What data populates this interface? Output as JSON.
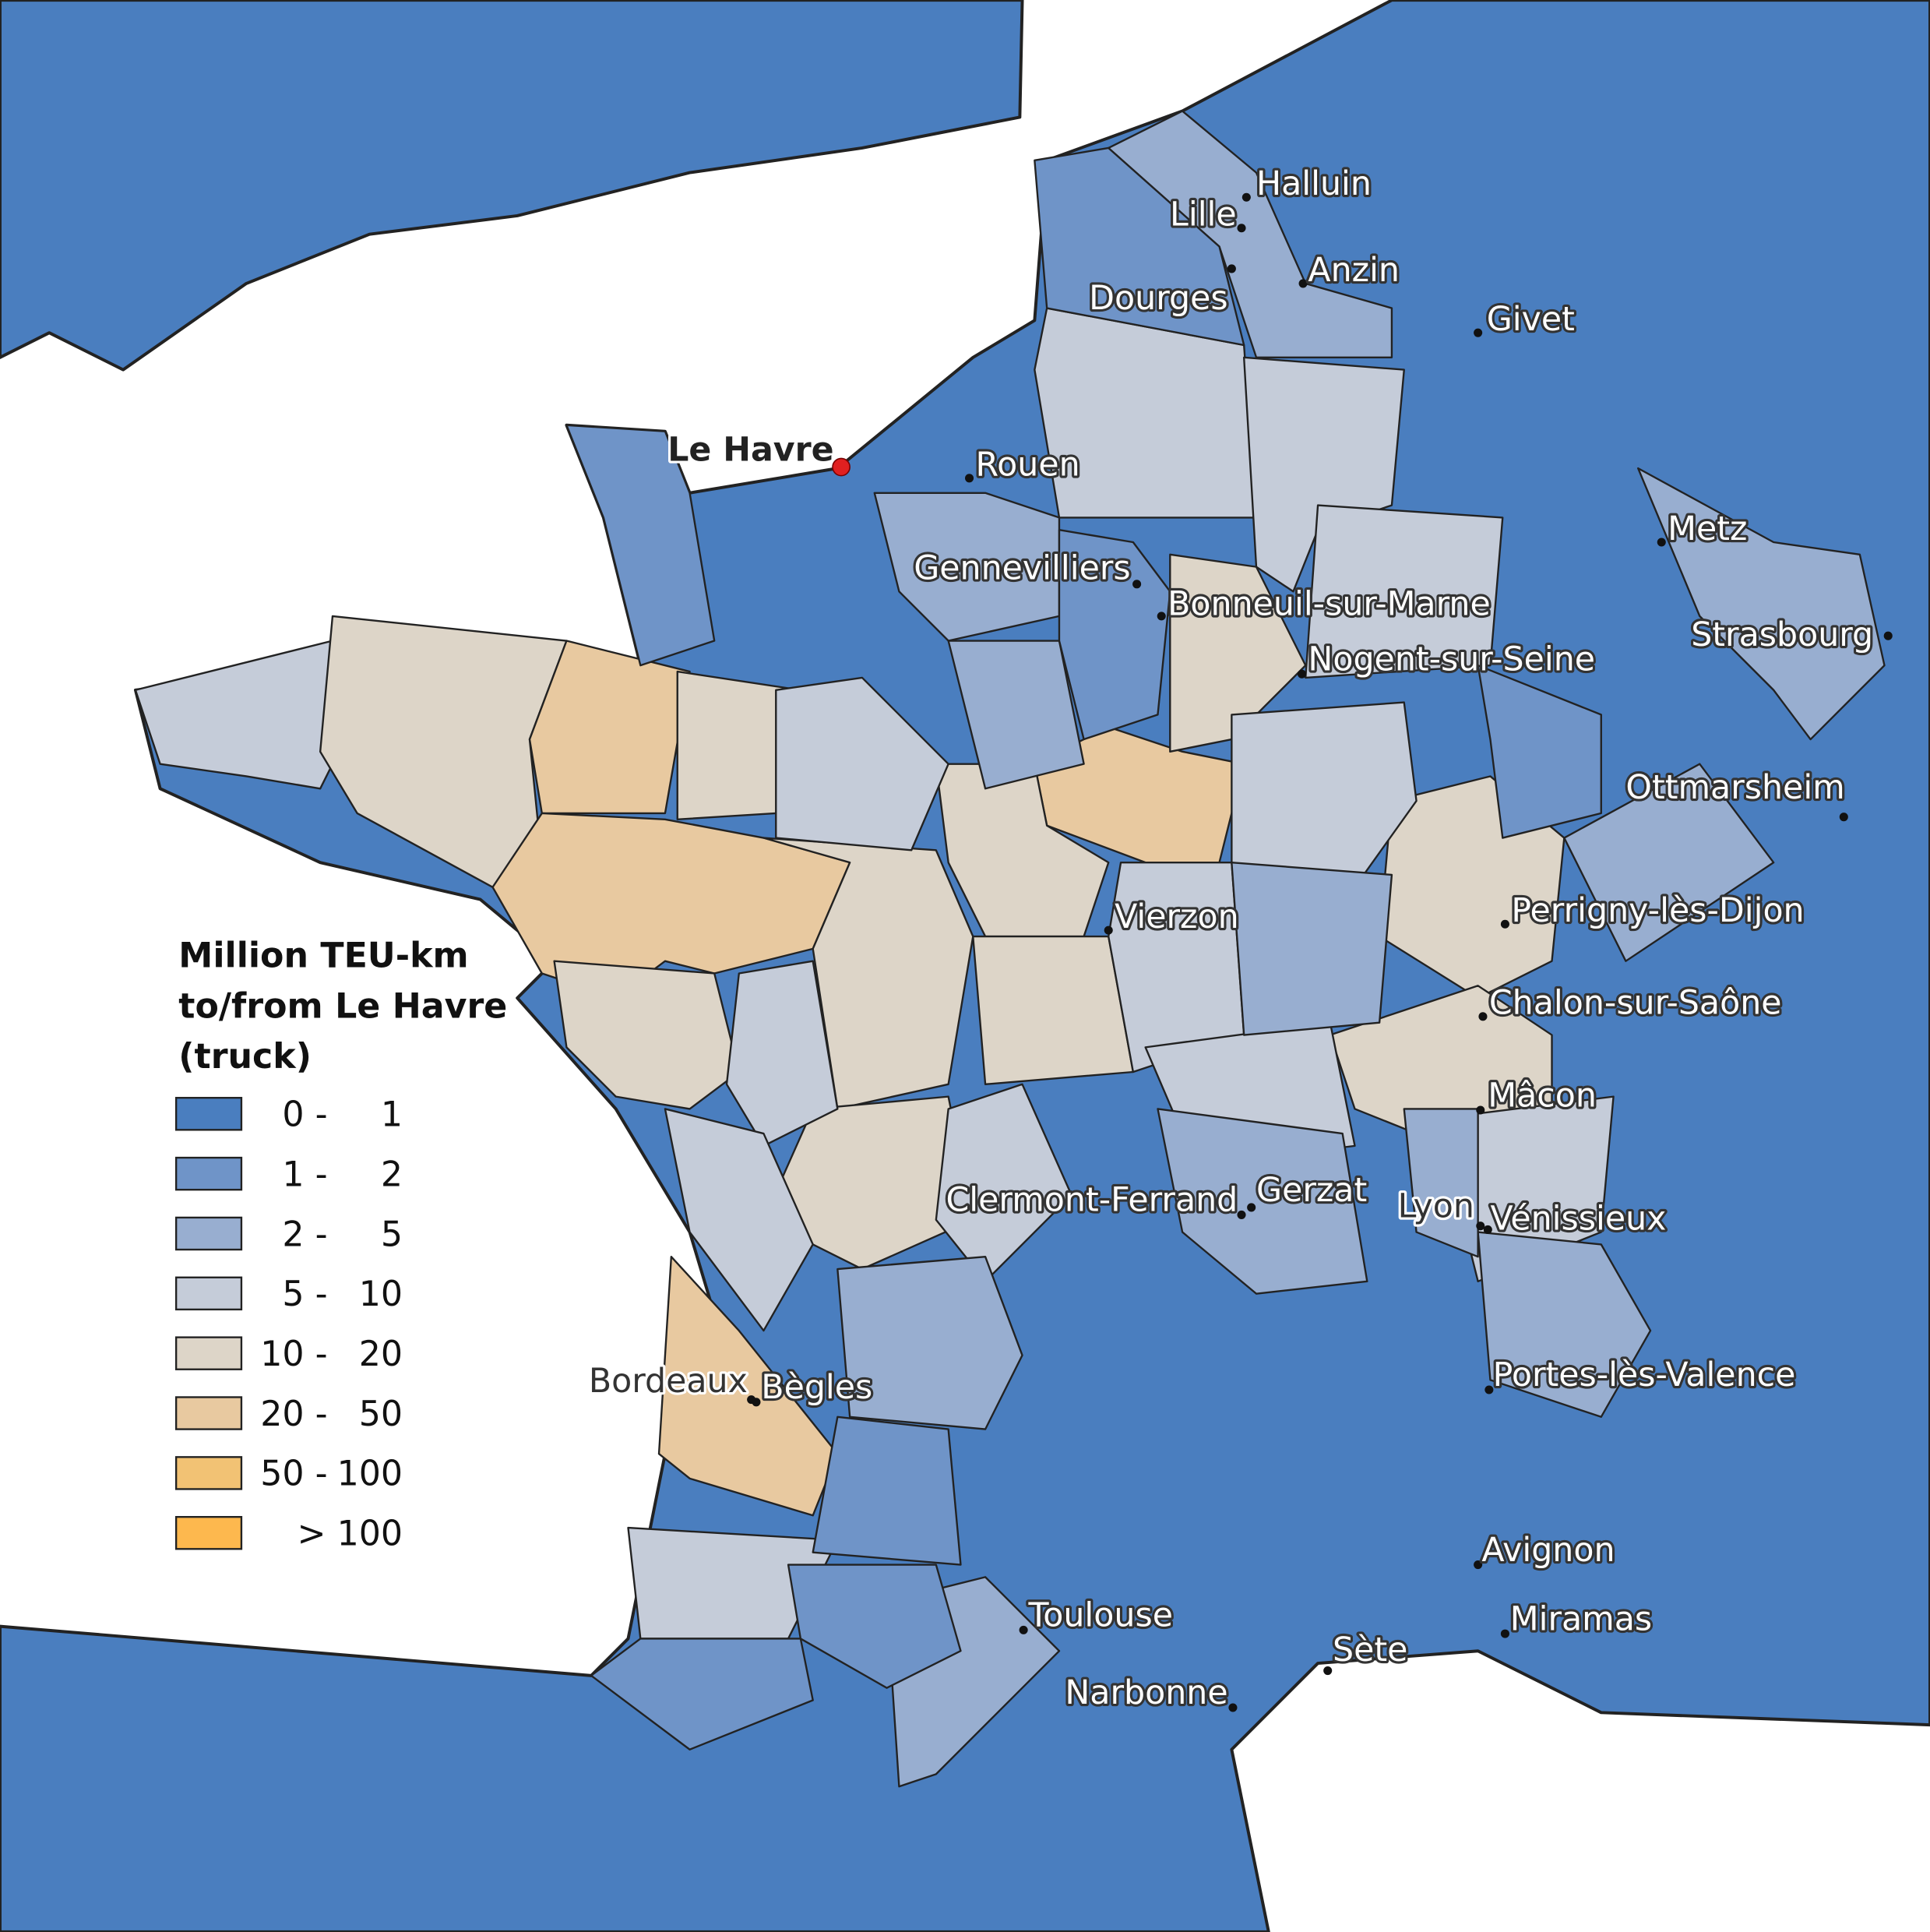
{
  "legend": {
    "title": [
      "Million TEU-km",
      "to/from Le Havre",
      "(truck)"
    ],
    "items": [
      {
        "low": "0 -",
        "high": "1",
        "color": "#4a7ebf"
      },
      {
        "low": "1 -",
        "high": "2",
        "color": "#6f94c8"
      },
      {
        "low": "2 -",
        "high": "5",
        "color": "#98aed0"
      },
      {
        "low": "5 -",
        "high": "10",
        "color": "#c5ccd9"
      },
      {
        "low": "10 -",
        "high": "20",
        "color": "#ddd5c8"
      },
      {
        "low": "20 -",
        "high": "50",
        "color": "#e8c9a0"
      },
      {
        "low": "50 -",
        "high": "100",
        "color": "#f2c274"
      },
      {
        "high": "> 100",
        "color": "#fdb84e"
      }
    ]
  },
  "port": {
    "name": "Le Havre"
  },
  "cities": [
    {
      "name": "Halluin"
    },
    {
      "name": "Lille"
    },
    {
      "name": "Dourges"
    },
    {
      "name": "Anzin"
    },
    {
      "name": "Givet"
    },
    {
      "name": "Rouen"
    },
    {
      "name": "Metz"
    },
    {
      "name": "Gennevilliers"
    },
    {
      "name": "Bonneuil-sur-Marne"
    },
    {
      "name": "Nogent-sur-Seine"
    },
    {
      "name": "Strasbourg"
    },
    {
      "name": "Ottmarsheim"
    },
    {
      "name": "Vierzon"
    },
    {
      "name": "Perrigny-lès-Dijon"
    },
    {
      "name": "Chalon-sur-Saône"
    },
    {
      "name": "Mâcon"
    },
    {
      "name": "Clermont-Ferrand"
    },
    {
      "name": "Gerzat"
    },
    {
      "name": "Lyon"
    },
    {
      "name": "Vénissieux"
    },
    {
      "name": "Portes-lès-Valence"
    },
    {
      "name": "Bordeaux"
    },
    {
      "name": "Bègles"
    },
    {
      "name": "Avignon"
    },
    {
      "name": "Miramas"
    },
    {
      "name": "Toulouse"
    },
    {
      "name": "Sète"
    },
    {
      "name": "Narbonne"
    }
  ]
}
